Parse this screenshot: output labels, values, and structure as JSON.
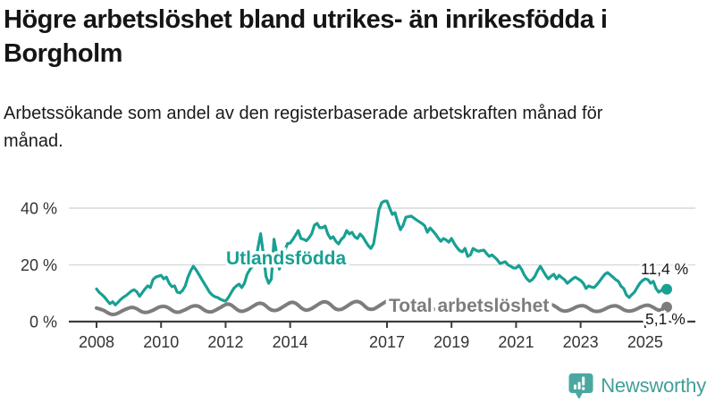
{
  "header": {
    "title": "Högre arbetslöshet bland utrikes- än inrikesfödda i Borgholm",
    "subtitle": "Arbetssökande som andel av den registerbaserade arbetskraften månad för månad."
  },
  "footer": {
    "brand": "Newsworthy"
  },
  "colors": {
    "foreign_born": "#18a093",
    "total": "#7d7d7d",
    "grid": "#d9d9d9",
    "axis": "#3d3d3d",
    "axis_text": "#333333",
    "value_text": "#1a1a1a",
    "brand_teal": "#3f9f98",
    "brand_icon": "#4aa8a1"
  },
  "chart_data": {
    "type": "line",
    "title": "Högre arbetslöshet bland utrikes- än inrikesfödda i Borgholm",
    "subtitle": "Arbetssökande som andel av den registerbaserade arbetskraften månad för månad.",
    "unit": "%",
    "frequency": "monthly",
    "x_start": "2008-01",
    "x_end": "2025-09",
    "grid": "horizontal",
    "legend_position": "inline-labels",
    "ylim": [
      0,
      45
    ],
    "y_ticks": [
      {
        "value": 0,
        "label": "0 %"
      },
      {
        "value": 20,
        "label": "20 %"
      },
      {
        "value": 40,
        "label": "40 %"
      }
    ],
    "x_ticks": [
      {
        "year": 2008,
        "label": "2008"
      },
      {
        "year": 2010,
        "label": "2010"
      },
      {
        "year": 2012,
        "label": "2012"
      },
      {
        "year": 2014,
        "label": "2014"
      },
      {
        "year": 2017,
        "label": "2017"
      },
      {
        "year": 2019,
        "label": "2019"
      },
      {
        "year": 2021,
        "label": "2021"
      },
      {
        "year": 2023,
        "label": "2023"
      },
      {
        "year": 2025,
        "label": "2025"
      }
    ],
    "series": [
      {
        "name": "Utlandsfödda",
        "color": "#18a093",
        "end_label": "11,4 %",
        "last_value": 11.4,
        "values": [
          11.5,
          10.3,
          9.5,
          8.6,
          7.4,
          6.3,
          7.0,
          5.9,
          6.8,
          7.8,
          8.6,
          9.2,
          10.0,
          10.8,
          11.2,
          10.5,
          8.9,
          10.2,
          11.5,
          12.6,
          12.0,
          14.8,
          15.7,
          16.0,
          16.3,
          15.1,
          15.7,
          13.5,
          12.3,
          12.6,
          10.4,
          10.1,
          11.0,
          12.6,
          15.7,
          17.9,
          19.5,
          18.3,
          16.7,
          15.1,
          13.5,
          12.0,
          10.4,
          9.4,
          8.8,
          8.5,
          7.9,
          7.5,
          7.2,
          8.5,
          10.1,
          11.7,
          12.6,
          13.2,
          12.0,
          13.5,
          16.7,
          18.3,
          19.5,
          20.5,
          26.0,
          31.0,
          24.0,
          16.0,
          13.5,
          15.0,
          29.0,
          24.0,
          18.5,
          22.0,
          25.0,
          27.5,
          27.7,
          29.0,
          30.5,
          32.1,
          29.3,
          29.0,
          28.5,
          29.5,
          31.0,
          34.0,
          34.6,
          33.1,
          33.1,
          33.7,
          30.9,
          29.3,
          29.9,
          28.3,
          27.4,
          29.0,
          29.9,
          32.1,
          30.9,
          31.5,
          29.9,
          29.3,
          30.9,
          29.9,
          28.3,
          26.8,
          25.8,
          27.4,
          33.1,
          39.4,
          41.9,
          42.5,
          42.5,
          40.0,
          37.8,
          38.4,
          35.0,
          32.4,
          34.0,
          36.8,
          37.0,
          37.2,
          36.5,
          35.8,
          35.2,
          34.6,
          33.8,
          31.5,
          33.0,
          32.0,
          30.9,
          29.5,
          28.3,
          29.3,
          28.8,
          28.0,
          29.3,
          27.5,
          26.1,
          25.0,
          24.6,
          25.8,
          23.0,
          23.5,
          25.8,
          25.2,
          24.8,
          25.0,
          25.2,
          24.0,
          23.0,
          23.5,
          22.7,
          21.8,
          20.5,
          20.8,
          21.1,
          20.0,
          19.5,
          18.9,
          18.9,
          19.8,
          18.5,
          16.5,
          15.1,
          14.2,
          14.8,
          16.0,
          18.0,
          19.5,
          17.9,
          16.3,
          15.1,
          16.0,
          16.7,
          15.1,
          16.3,
          15.5,
          14.8,
          13.5,
          14.3,
          15.1,
          15.7,
          15.1,
          14.5,
          13.5,
          11.7,
          12.6,
          12.2,
          12.0,
          13.0,
          14.2,
          15.5,
          16.7,
          17.3,
          16.5,
          15.7,
          14.8,
          14.2,
          12.5,
          11.7,
          9.4,
          8.5,
          9.5,
          10.4,
          12.0,
          13.5,
          14.5,
          15.1,
          14.8,
          13.5,
          14.2,
          11.7,
          10.4,
          11.0,
          12.0,
          11.4
        ]
      },
      {
        "name": "Total arbetslöshet",
        "color": "#7d7d7d",
        "end_label": "5,1 %",
        "last_value": 5.1,
        "values": [
          4.8,
          4.5,
          4.2,
          3.8,
          3.2,
          2.7,
          2.5,
          2.6,
          3.0,
          3.5,
          4.0,
          4.4,
          4.8,
          5.0,
          4.9,
          4.5,
          3.9,
          3.4,
          3.2,
          3.3,
          3.6,
          4.0,
          4.5,
          5.0,
          5.3,
          5.4,
          5.2,
          4.7,
          4.0,
          3.5,
          3.3,
          3.4,
          3.8,
          4.2,
          4.7,
          5.2,
          5.5,
          5.6,
          5.4,
          4.8,
          4.1,
          3.6,
          3.4,
          3.5,
          3.9,
          4.4,
          4.9,
          5.5,
          6.0,
          6.2,
          5.9,
          5.2,
          4.4,
          3.8,
          3.6,
          3.8,
          4.2,
          4.7,
          5.3,
          5.9,
          6.4,
          6.5,
          6.2,
          5.5,
          4.7,
          4.1,
          3.9,
          4.0,
          4.4,
          5.0,
          5.6,
          6.2,
          6.7,
          6.8,
          6.5,
          5.8,
          4.9,
          4.3,
          4.0,
          4.2,
          4.6,
          5.2,
          5.8,
          6.4,
          6.9,
          7.0,
          6.7,
          6.0,
          5.1,
          4.4,
          4.2,
          4.3,
          4.8,
          5.4,
          6.0,
          6.6,
          7.0,
          7.1,
          6.8,
          6.1,
          5.2,
          4.5,
          4.3,
          4.4,
          4.9,
          5.5,
          6.1,
          6.7,
          7.3,
          7.2,
          6.9,
          6.2,
          5.3,
          4.6,
          4.4,
          4.5,
          5.0,
          5.5,
          6.1,
          6.7,
          7.0,
          7.0,
          6.7,
          6.0,
          5.1,
          4.5,
          4.3,
          4.4,
          4.8,
          5.3,
          5.9,
          6.4,
          6.7,
          6.7,
          6.4,
          5.7,
          4.9,
          4.3,
          4.1,
          4.2,
          4.6,
          5.1,
          5.6,
          6.1,
          6.5,
          6.6,
          6.5,
          6.2,
          5.6,
          5.0,
          4.8,
          4.8,
          5.0,
          5.4,
          5.8,
          6.2,
          6.5,
          6.5,
          6.2,
          5.6,
          4.9,
          4.3,
          4.1,
          4.2,
          4.5,
          4.9,
          5.4,
          5.8,
          6.0,
          6.0,
          5.7,
          5.1,
          4.4,
          3.9,
          3.7,
          3.8,
          4.1,
          4.5,
          5.0,
          5.4,
          5.6,
          5.6,
          5.3,
          4.7,
          4.1,
          3.7,
          3.6,
          3.7,
          4.0,
          4.4,
          4.9,
          5.3,
          5.5,
          5.6,
          5.3,
          4.8,
          4.2,
          3.8,
          3.7,
          3.8,
          4.1,
          4.5,
          5.0,
          5.4,
          5.7,
          5.8,
          5.5,
          5.0,
          4.4,
          4.0,
          4.2,
          4.8,
          5.1
        ]
      }
    ]
  }
}
